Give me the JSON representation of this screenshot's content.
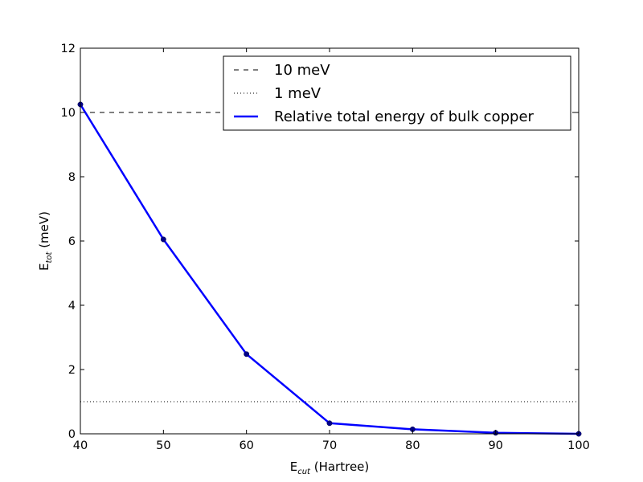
{
  "chart_data": {
    "type": "line",
    "x": [
      40,
      50,
      60,
      70,
      80,
      90,
      100
    ],
    "series": [
      {
        "name": "Relative total energy of bulk copper",
        "values": [
          10.25,
          6.05,
          2.48,
          0.33,
          0.14,
          0.03,
          0.0
        ],
        "color": "#0000ff",
        "style": "solid",
        "markers": true
      }
    ],
    "reference_lines": [
      {
        "name": "10 meV",
        "y": 10,
        "style": "dashed",
        "color": "#000000"
      },
      {
        "name": "1 meV",
        "y": 1,
        "style": "dotted",
        "color": "#000000"
      }
    ],
    "xlabel": {
      "main": "E",
      "sub": "cut",
      "unit": " (Hartree)"
    },
    "ylabel": {
      "main": "E",
      "sub": "tot",
      "unit": " (meV)"
    },
    "xlim": [
      40,
      100
    ],
    "ylim": [
      0,
      12
    ],
    "xticks": [
      40,
      50,
      60,
      70,
      80,
      90,
      100
    ],
    "yticks": [
      0,
      2,
      4,
      6,
      8,
      10,
      12
    ],
    "grid": false,
    "legend_position": "top-right"
  }
}
